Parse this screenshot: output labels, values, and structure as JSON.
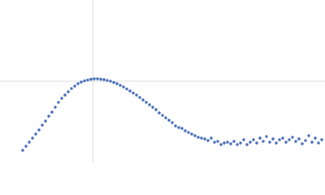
{
  "chart_data": {
    "type": "scatter",
    "x": [
      0.245,
      0.28,
      0.315,
      0.35,
      0.385,
      0.42,
      0.455,
      0.49,
      0.525,
      0.56,
      0.595,
      0.63,
      0.665,
      0.7,
      0.735,
      0.77,
      0.805,
      0.84,
      0.875,
      0.91,
      0.945,
      0.98,
      1.015,
      1.05,
      1.085,
      1.12,
      1.155,
      1.19,
      1.225,
      1.26,
      1.295,
      1.33,
      1.365,
      1.4,
      1.435,
      1.47,
      1.505,
      1.54,
      1.575,
      1.61,
      1.645,
      1.68,
      1.715,
      1.75,
      1.785,
      1.82,
      1.855,
      1.89,
      1.925,
      1.96,
      1.995,
      2.03,
      2.065,
      2.1,
      2.135,
      2.17,
      2.205,
      2.24,
      2.275,
      2.31,
      2.345,
      2.38,
      2.415,
      2.45,
      2.485,
      2.52,
      2.555,
      2.59,
      2.625,
      2.66,
      2.695,
      2.73,
      2.765,
      2.8,
      2.835,
      2.87,
      2.905,
      2.94,
      2.975,
      3.01,
      3.045,
      3.08,
      3.115,
      3.15,
      3.185,
      3.22,
      3.255,
      3.29,
      3.325,
      3.36,
      3.395,
      3.43,
      3.465
    ],
    "values": [
      0.15,
      0.2,
      0.25,
      0.3,
      0.35,
      0.4,
      0.46,
      0.51,
      0.57,
      0.62,
      0.68,
      0.74,
      0.79,
      0.83,
      0.87,
      0.91,
      0.94,
      0.97,
      0.99,
      1.005,
      1.015,
      1.025,
      1.03,
      1.03,
      1.025,
      1.02,
      1.01,
      1.0,
      0.985,
      0.97,
      0.95,
      0.93,
      0.905,
      0.88,
      0.855,
      0.83,
      0.8,
      0.77,
      0.74,
      0.71,
      0.68,
      0.65,
      0.61,
      0.58,
      0.55,
      0.52,
      0.49,
      0.45,
      0.43,
      0.42,
      0.39,
      0.37,
      0.35,
      0.33,
      0.31,
      0.3,
      0.29,
      0.27,
      0.3,
      0.25,
      0.26,
      0.22,
      0.24,
      0.25,
      0.23,
      0.26,
      0.22,
      0.24,
      0.28,
      0.22,
      0.25,
      0.28,
      0.24,
      0.3,
      0.26,
      0.32,
      0.25,
      0.29,
      0.24,
      0.28,
      0.3,
      0.25,
      0.28,
      0.31,
      0.26,
      0.29,
      0.23,
      0.27,
      0.33,
      0.25,
      0.3,
      0.24,
      0.28
    ],
    "color": "#3f66b5",
    "xlim": [
      0,
      3.5
    ],
    "ylim": [
      0,
      2
    ],
    "xticks": [
      1
    ],
    "yticks": [
      1
    ],
    "grid": true
  }
}
